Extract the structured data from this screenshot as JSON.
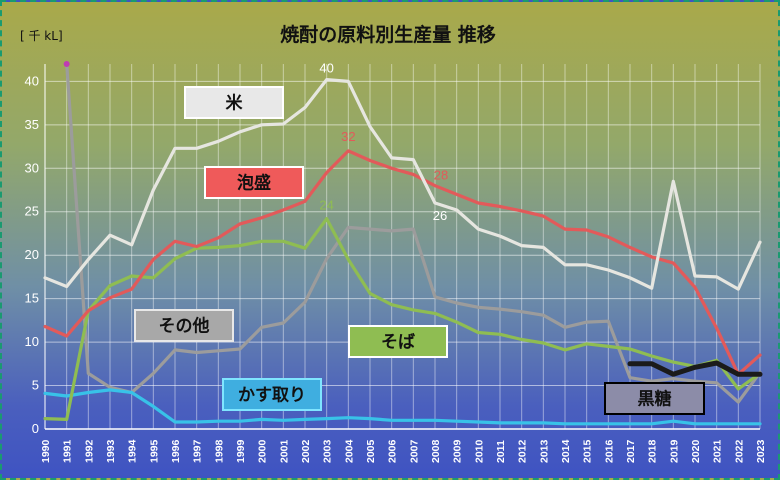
{
  "chart_data": {
    "type": "line",
    "title": "焼酎の原料別生産量 推移",
    "unit_label": "[ 千 kL]",
    "x": [
      "1990",
      "1991",
      "1992",
      "1993",
      "1994",
      "1995",
      "1996",
      "1997",
      "1998",
      "1999",
      "2000",
      "2001",
      "2002",
      "2003",
      "2004",
      "2005",
      "2006",
      "2007",
      "2008",
      "2009",
      "2010",
      "2011",
      "2012",
      "2013",
      "2014",
      "2015",
      "2016",
      "2017",
      "2018",
      "2019",
      "2020",
      "2021",
      "2022",
      "2023"
    ],
    "ylim": [
      0,
      42
    ],
    "yticks": [
      0,
      5,
      10,
      15,
      20,
      25,
      30,
      35,
      40
    ],
    "grid": true,
    "series": [
      {
        "name": "米",
        "color": "#e6e6e0",
        "label_bg": "#e8e8e8",
        "label_border": "#ffffff",
        "label_text": "#111111",
        "values": [
          17.4,
          16.4,
          19.5,
          22.3,
          21.2,
          27.5,
          32.3,
          32.3,
          33.1,
          34.2,
          35.0,
          35.1,
          37.0,
          40.2,
          40.0,
          34.8,
          31.2,
          31.0,
          26.0,
          25.2,
          23.0,
          22.2,
          21.1,
          20.9,
          18.9,
          18.9,
          18.3,
          17.4,
          16.2,
          28.5,
          17.6,
          17.5,
          16.1,
          21.5
        ]
      },
      {
        "name": "泡盛",
        "color": "#e25a5a",
        "label_bg": "#ef5a5a",
        "label_border": "#ffffff",
        "label_text": "#111111",
        "values": [
          11.8,
          10.7,
          13.6,
          15.1,
          16.1,
          19.5,
          21.6,
          21.0,
          22.0,
          23.6,
          24.3,
          25.2,
          26.2,
          29.5,
          32.0,
          30.9,
          30.0,
          29.3,
          28.0,
          27.0,
          26.0,
          25.6,
          25.1,
          24.5,
          23.0,
          22.9,
          22.1,
          20.9,
          19.8,
          19.1,
          16.3,
          11.6,
          6.3,
          8.5
        ]
      },
      {
        "name": "その他",
        "color": "#9c9c9c",
        "label_bg": "#a8a8a8",
        "label_border": "#e8e8e8",
        "label_text": "#111111",
        "values": [
          null,
          42.0,
          6.4,
          4.8,
          4.2,
          6.4,
          9.1,
          8.8,
          9.0,
          9.2,
          11.7,
          12.2,
          14.6,
          19.6,
          23.2,
          23.0,
          22.8,
          23.0,
          15.2,
          14.5,
          14.0,
          13.8,
          13.5,
          13.1,
          11.7,
          12.3,
          12.4,
          5.9,
          5.5,
          5.8,
          5.5,
          5.3,
          3.1,
          6.5
        ]
      },
      {
        "name": "そば",
        "color": "#8fbd52",
        "label_bg": "#8fbd52",
        "label_border": "#ffffff",
        "label_text": "#111111",
        "values": [
          1.2,
          1.1,
          13.6,
          16.5,
          17.6,
          17.4,
          19.6,
          20.8,
          20.9,
          21.1,
          21.6,
          21.6,
          20.8,
          24.2,
          19.5,
          15.6,
          14.3,
          13.7,
          13.3,
          12.3,
          11.1,
          10.9,
          10.3,
          9.9,
          9.1,
          9.8,
          9.5,
          9.2,
          8.4,
          7.7,
          7.2,
          7.9,
          4.6,
          6.4
        ]
      },
      {
        "name": "かす取り",
        "color": "#38c2e8",
        "label_bg": "#3faee0",
        "label_border": "#7fe5ff",
        "label_text": "#111111",
        "values": [
          4.1,
          3.8,
          4.2,
          4.5,
          4.2,
          2.6,
          0.8,
          0.8,
          0.9,
          0.9,
          1.1,
          1.0,
          1.1,
          1.2,
          1.3,
          1.2,
          1.0,
          1.0,
          1.0,
          0.9,
          0.8,
          0.7,
          0.7,
          0.7,
          0.6,
          0.6,
          0.6,
          0.6,
          0.6,
          0.9,
          0.6,
          0.6,
          0.6,
          0.6
        ]
      },
      {
        "name": "黒糖",
        "color": "#1b1b1b",
        "label_bg": "#8c8ca8",
        "label_border": "#000000",
        "label_text": "#111111",
        "values": [
          null,
          null,
          null,
          null,
          null,
          null,
          null,
          null,
          null,
          null,
          null,
          null,
          null,
          null,
          null,
          null,
          null,
          null,
          null,
          null,
          null,
          null,
          null,
          null,
          null,
          null,
          null,
          7.5,
          7.5,
          6.3,
          7.1,
          7.6,
          6.3,
          6.3
        ]
      }
    ],
    "annotations": [
      {
        "text": "40",
        "series": "米",
        "year": "2003",
        "color": "#ffffff"
      },
      {
        "text": "26",
        "series": "米",
        "year": "2008",
        "color": "#ffffff"
      },
      {
        "text": "32",
        "series": "泡盛",
        "year": "2004",
        "color": "#e25a5a"
      },
      {
        "text": "28",
        "series": "泡盛",
        "year": "2008",
        "color": "#e25a5a"
      },
      {
        "text": "24",
        "series": "そば",
        "year": "2003",
        "color": "#8fbd52"
      }
    ],
    "colors": {
      "plot_area": "#ffffff",
      "gridline": "#ffffff",
      "frame_border": "#1a9a70",
      "magenta_marker": "#c03ab4"
    }
  }
}
